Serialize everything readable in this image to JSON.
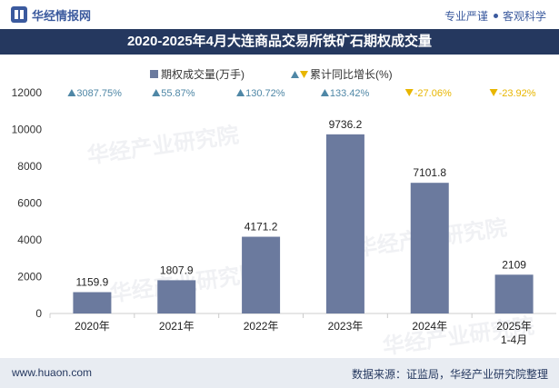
{
  "header": {
    "brand_name": "华经情报网",
    "slogan_left": "专业严谨",
    "slogan_right": "客观科学"
  },
  "title": "2020-2025年4月大连商品交易所铁矿石期权成交量",
  "footer": {
    "website": "www.huaon.com",
    "source": "数据来源：证监局，华经产业研究院整理"
  },
  "watermark": "华经产业研究院",
  "colors": {
    "bar": "#6b7a9e",
    "up": "#4f87a6",
    "down": "#e8b600",
    "title_bg": "#25385f"
  },
  "chart_data": {
    "type": "bar",
    "categories": [
      "2020年",
      "2021年",
      "2022年",
      "2023年",
      "2024年",
      "2025年\n1-4月"
    ],
    "series": [
      {
        "name": "期权成交量(万手)",
        "values": [
          1159.9,
          1807.9,
          4171.2,
          9736.2,
          7101.8,
          2109
        ],
        "labels": [
          "1159.9",
          "1807.9",
          "4171.2",
          "9736.2",
          "7101.8",
          "2109"
        ]
      },
      {
        "name": "累计同比增长(%)",
        "values": [
          3087.75,
          55.87,
          130.72,
          133.42,
          -27.06,
          -23.92
        ],
        "labels": [
          "3087.75%",
          "55.87%",
          "130.72%",
          "133.42%",
          "-27.06%",
          "-23.92%"
        ]
      }
    ],
    "ylim": [
      0,
      12000
    ],
    "yticks": [
      "0",
      "2000",
      "4000",
      "6000",
      "8000",
      "10000",
      "12000"
    ],
    "legend_position": "top",
    "grid": false
  }
}
